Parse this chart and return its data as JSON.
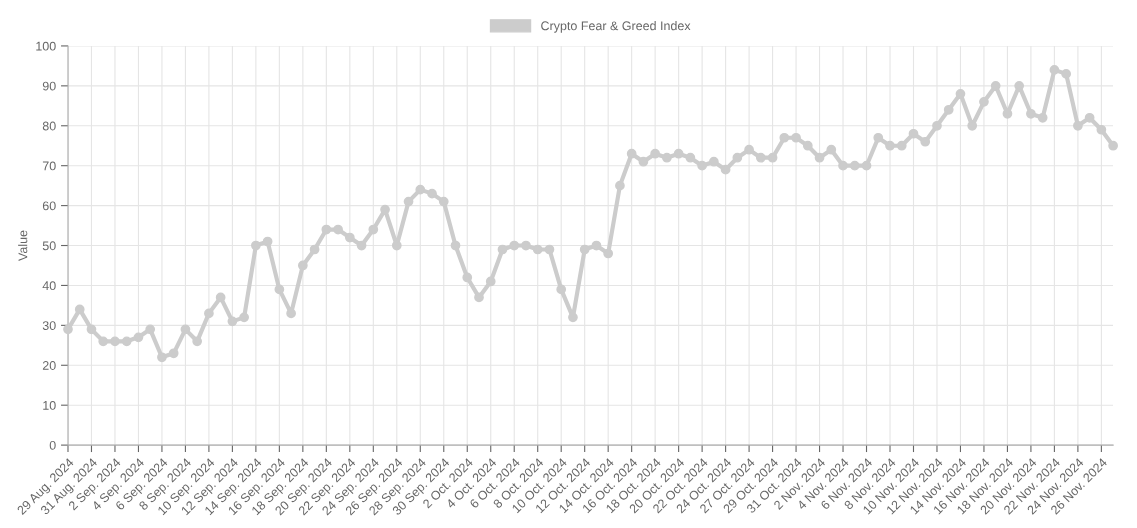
{
  "chart_data": {
    "type": "line",
    "ylabel": "Value",
    "categories": [
      "29 Aug. 2024",
      null,
      "31 Aug. 2024",
      null,
      "2 Sep. 2024",
      null,
      "4 Sep. 2024",
      null,
      "6 Sep. 2024",
      null,
      "8 Sep. 2024",
      null,
      "10 Sep. 2024",
      null,
      "12 Sep. 2024",
      null,
      "14 Sep. 2024",
      null,
      "16 Sep. 2024",
      null,
      "18 Sep. 2024",
      null,
      "20 Sep. 2024",
      null,
      "22 Sep. 2024",
      null,
      "24 Sep. 2024",
      null,
      "26 Sep. 2024",
      null,
      "28 Sep. 2024",
      null,
      "30 Sep. 2024",
      null,
      "2 Oct. 2024",
      null,
      "4 Oct. 2024",
      null,
      "6 Oct. 2024",
      null,
      "8 Oct. 2024",
      null,
      "10 Oct. 2024",
      null,
      "12 Oct. 2024",
      null,
      "14 Oct. 2024",
      null,
      "16 Oct. 2024",
      null,
      "18 Oct. 2024",
      null,
      "20 Oct. 2024",
      null,
      "22 Oct. 2024",
      null,
      "24 Oct. 2024",
      null,
      "27 Oct. 2024",
      null,
      "29 Oct. 2024",
      null,
      "31 Oct. 2024",
      null,
      "2 Nov. 2024",
      null,
      "4 Nov. 2024",
      null,
      "6 Nov. 2024",
      null,
      "8 Nov. 2024",
      null,
      "10 Nov. 2024",
      null,
      "12 Nov. 2024",
      null,
      "14 Nov. 2024",
      null,
      "16 Nov. 2024",
      null,
      "18 Nov. 2024",
      null,
      "20 Nov. 2024",
      null,
      "22 Nov. 2024",
      null,
      "24 Nov. 2024",
      null,
      "26 Nov. 2024",
      null
    ],
    "series": [
      {
        "name": "Crypto Fear & Greed Index",
        "color": "#cccccc",
        "values": [
          29,
          34,
          29,
          26,
          26,
          26,
          27,
          29,
          22,
          23,
          29,
          26,
          33,
          37,
          31,
          32,
          50,
          51,
          39,
          33,
          45,
          49,
          54,
          54,
          52,
          50,
          54,
          59,
          50,
          61,
          64,
          63,
          61,
          50,
          42,
          37,
          41,
          49,
          50,
          50,
          49,
          49,
          39,
          32,
          49,
          50,
          48,
          65,
          73,
          71,
          73,
          72,
          73,
          72,
          70,
          71,
          69,
          72,
          74,
          72,
          72,
          77,
          77,
          75,
          72,
          74,
          70,
          70,
          70,
          77,
          75,
          75,
          78,
          76,
          80,
          84,
          88,
          80,
          86,
          90,
          83,
          90,
          83,
          82,
          94,
          93,
          80,
          82,
          79,
          75
        ]
      }
    ],
    "ylim": [
      0,
      100
    ],
    "yticks": [
      0,
      10,
      20,
      30,
      40,
      50,
      60,
      70,
      80,
      90,
      100
    ],
    "grid": true,
    "legend": "top",
    "marker": "circle",
    "line_style": "solid"
  }
}
